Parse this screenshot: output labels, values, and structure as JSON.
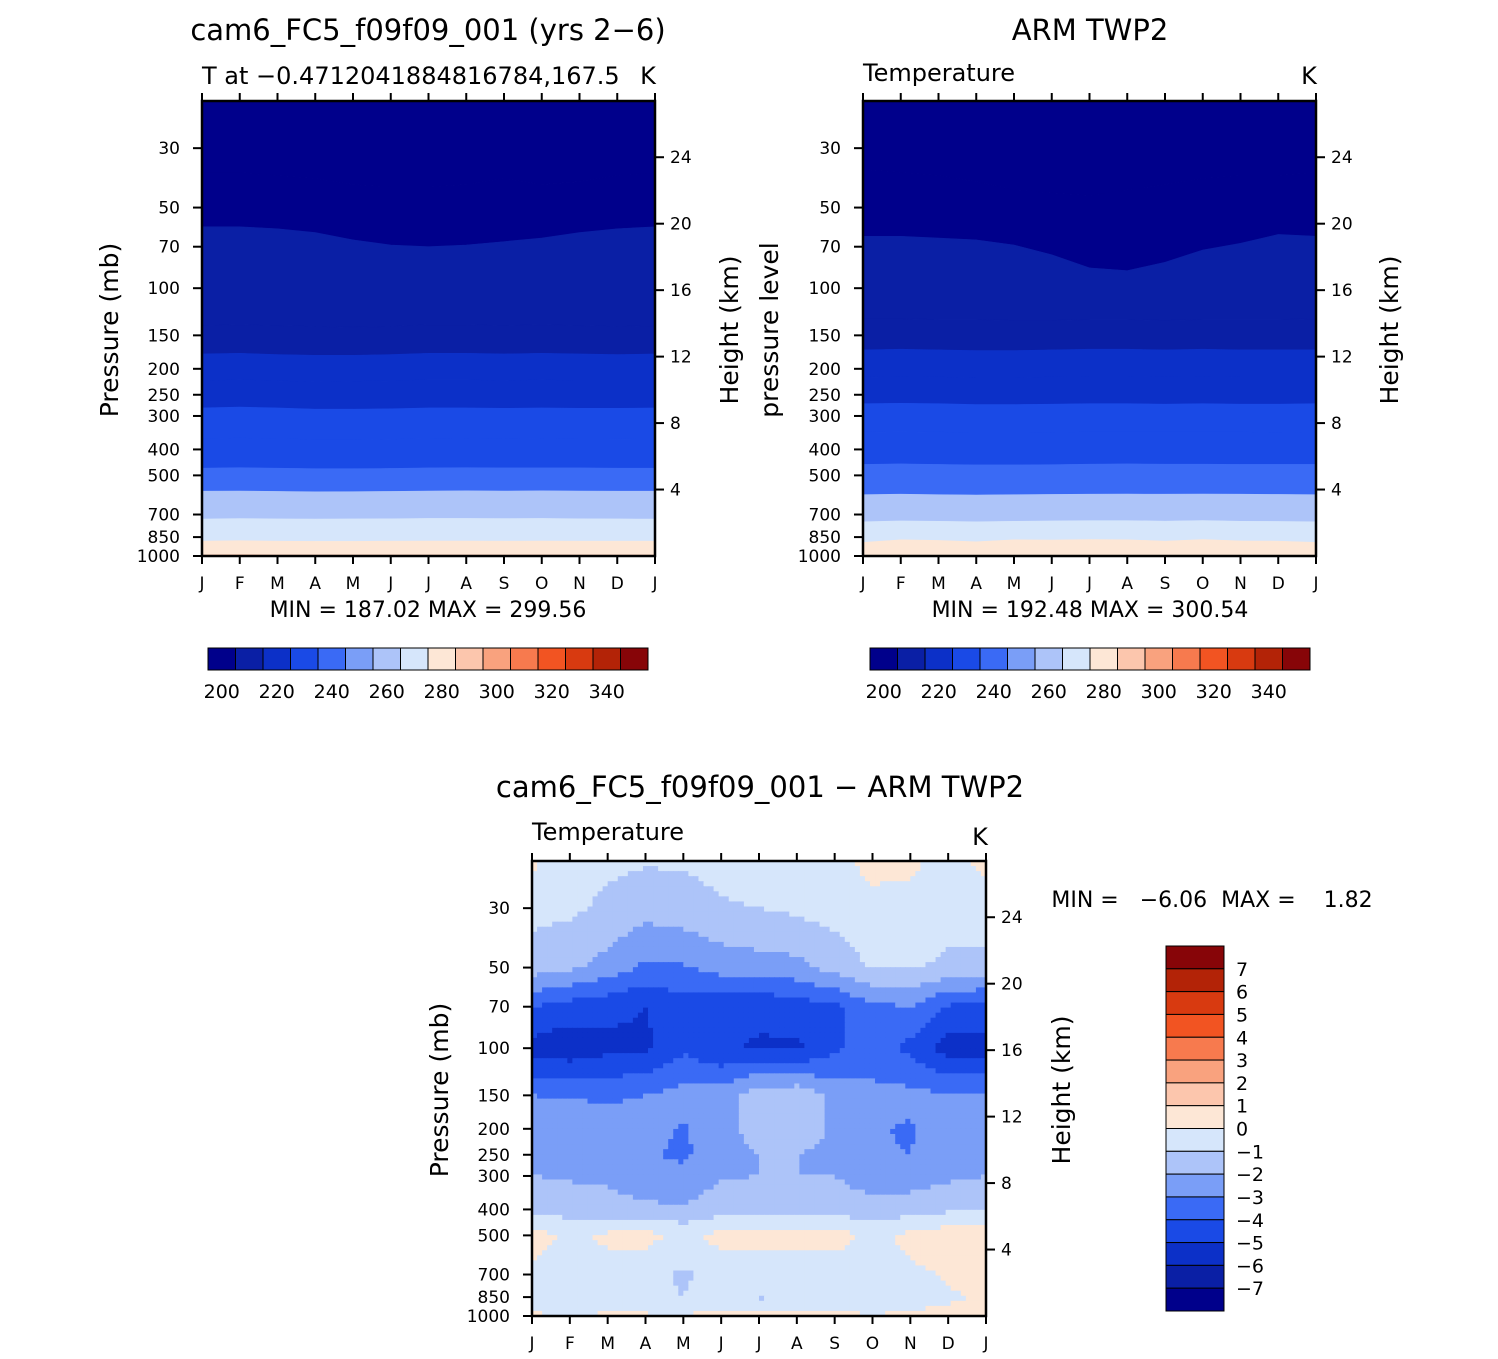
{
  "chart_data": [
    {
      "type": "heatmap",
      "title": "cam6_FC5_f09f09_001 (yrs 2−6)",
      "subtitle": "T at −0.4712041884816784,167.5",
      "units": "K",
      "xlabel": "",
      "ylabel": "Pressure (mb)",
      "ylabel_right": "Height (km)",
      "x_ticks": [
        "J",
        "F",
        "M",
        "A",
        "M",
        "J",
        "J",
        "A",
        "S",
        "O",
        "N",
        "D",
        "J"
      ],
      "y_ticks": [
        "30",
        "50",
        "70",
        "100",
        "150",
        "200",
        "250",
        "300",
        "400",
        "500",
        "700",
        "850",
        "1000"
      ],
      "y_ticks_right": [
        "24",
        "20",
        "16",
        "12",
        "8",
        "4"
      ],
      "ylim": [
        1000,
        20
      ],
      "y_scale": "log",
      "stats": "MIN = 187.02 MAX = 299.56",
      "colorbar": {
        "levels": [
          195,
          200,
          205,
          210,
          215,
          220,
          225,
          230,
          235,
          240,
          245,
          250,
          255,
          260,
          265,
          270,
          275,
          280,
          285,
          290,
          295,
          300,
          305,
          310,
          315,
          320,
          325,
          330,
          335,
          340,
          345,
          350
        ],
        "labels": [
          "200",
          "220",
          "240",
          "260",
          "280",
          "300",
          "320",
          "340"
        ],
        "colors": [
          "#00008b",
          "#0a1fa5",
          "#0c30c8",
          "#1a4ae6",
          "#3a6af5",
          "#7a9ef7",
          "#adc4f9",
          "#d6e6fb",
          "#fde7d6",
          "#fcc6ad",
          "#f9a27e",
          "#f77a4e",
          "#f25422",
          "#d83a10",
          "#b32307",
          "#870508"
        ]
      },
      "bands": [
        {
          "bottom_p": 20,
          "top_p": 20,
          "value": 196,
          "top_profile": [
            20,
            20,
            20,
            20,
            20,
            20,
            20,
            20,
            20,
            20,
            20,
            20,
            20
          ]
        },
        {
          "value": 200,
          "top_profile": [
            37,
            37,
            38,
            39,
            41,
            42,
            42,
            41,
            39,
            41,
            40,
            38,
            37
          ]
        },
        {
          "value": 205,
          "top_profile": [
            59,
            59,
            60,
            62,
            66,
            69,
            70,
            69,
            67,
            65,
            62,
            60,
            59
          ]
        },
        {
          "value": 210,
          "top_profile": [
            138,
            137,
            138,
            139,
            140,
            139,
            137,
            137,
            138,
            137,
            138,
            139,
            138
          ]
        },
        {
          "value": 215,
          "top_profile": [
            176,
            175,
            177,
            178,
            178,
            177,
            175,
            175,
            176,
            175,
            176,
            177,
            176
          ]
        },
        {
          "value": 220,
          "top_profile": [
            222,
            220,
            222,
            224,
            223,
            222,
            220,
            220,
            222,
            220,
            222,
            222,
            222
          ]
        },
        {
          "value": 225,
          "top_profile": [
            280,
            278,
            280,
            283,
            283,
            282,
            280,
            280,
            281,
            280,
            281,
            281,
            280
          ]
        },
        {
          "value": 230,
          "top_profile": [
            365,
            363,
            365,
            368,
            368,
            367,
            365,
            364,
            365,
            364,
            365,
            366,
            365
          ]
        },
        {
          "value": 240,
          "top_profile": [
            470,
            468,
            470,
            472,
            472,
            471,
            469,
            468,
            469,
            469,
            469,
            470,
            470
          ]
        },
        {
          "value": 260,
          "top_profile": [
            573,
            572,
            574,
            576,
            575,
            574,
            572,
            571,
            572,
            571,
            572,
            573,
            573
          ]
        },
        {
          "value": 272,
          "top_profile": [
            728,
            725,
            727,
            728,
            727,
            726,
            724,
            724,
            725,
            724,
            726,
            727,
            728
          ]
        },
        {
          "value": 282,
          "top_profile": [
            880,
            877,
            880,
            882,
            882,
            880,
            879,
            879,
            880,
            879,
            880,
            880,
            880
          ]
        },
        {
          "value": 292,
          "top_profile": [
            990,
            988,
            990,
            990,
            990,
            990,
            990,
            990,
            990,
            990,
            990,
            990,
            990
          ]
        }
      ]
    },
    {
      "type": "heatmap",
      "title": "ARM TWP2",
      "subtitle": "Temperature",
      "units": "K",
      "xlabel": "",
      "ylabel": "pressure level",
      "ylabel_right": "Height (km)",
      "x_ticks": [
        "J",
        "F",
        "M",
        "A",
        "M",
        "J",
        "J",
        "A",
        "S",
        "O",
        "N",
        "D",
        "J"
      ],
      "y_ticks": [
        "30",
        "50",
        "70",
        "100",
        "150",
        "200",
        "250",
        "300",
        "400",
        "500",
        "700",
        "850",
        "1000"
      ],
      "y_ticks_right": [
        "24",
        "20",
        "16",
        "12",
        "8",
        "4"
      ],
      "ylim": [
        1000,
        20
      ],
      "y_scale": "log",
      "stats": "MIN = 192.48 MAX = 300.54",
      "colorbar": {
        "levels": [
          195,
          200,
          205,
          210,
          215,
          220,
          225,
          230,
          235,
          240,
          245,
          250,
          255,
          260,
          265,
          270,
          275,
          280,
          285,
          290,
          295,
          300,
          305,
          310,
          315,
          320,
          325,
          330,
          335,
          340,
          345,
          350
        ],
        "labels": [
          "200",
          "220",
          "240",
          "260",
          "280",
          "300",
          "320",
          "340"
        ],
        "colors": [
          "#00008b",
          "#0a1fa5",
          "#0c30c8",
          "#1a4ae6",
          "#3a6af5",
          "#7a9ef7",
          "#adc4f9",
          "#d6e6fb",
          "#fde7d6",
          "#fcc6ad",
          "#f9a27e",
          "#f77a4e",
          "#f25422",
          "#d83a10",
          "#b32307",
          "#870508"
        ]
      },
      "bands": [
        {
          "bottom_p": 20,
          "top_p": 20,
          "value": 197,
          "top_profile": [
            20,
            20,
            20,
            20,
            20,
            20,
            20,
            20,
            20,
            20,
            20,
            20,
            20
          ]
        },
        {
          "value": 200,
          "top_profile": [
            36,
            37,
            38,
            40,
            43,
            44,
            45,
            43,
            41,
            39,
            38,
            38,
            37
          ]
        },
        {
          "value": 205,
          "top_profile": [
            64,
            64,
            65,
            66,
            69,
            75,
            84,
            86,
            80,
            72,
            68,
            63,
            64
          ]
        },
        {
          "value": 210,
          "top_profile": [
            130,
            130,
            131,
            131,
            132,
            132,
            131,
            131,
            132,
            131,
            131,
            131,
            130
          ]
        },
        {
          "value": 215,
          "top_profile": [
            170,
            169,
            170,
            171,
            171,
            170,
            169,
            169,
            170,
            169,
            170,
            170,
            170
          ]
        },
        {
          "value": 220,
          "top_profile": [
            215,
            214,
            215,
            216,
            216,
            215,
            214,
            214,
            215,
            214,
            215,
            215,
            215
          ]
        },
        {
          "value": 225,
          "top_profile": [
            270,
            269,
            270,
            272,
            272,
            271,
            270,
            270,
            271,
            270,
            271,
            271,
            270
          ]
        },
        {
          "value": 230,
          "top_profile": [
            345,
            344,
            345,
            347,
            347,
            346,
            345,
            345,
            345,
            345,
            345,
            346,
            345
          ]
        },
        {
          "value": 240,
          "top_profile": [
            455,
            453,
            455,
            457,
            457,
            456,
            454,
            453,
            454,
            454,
            455,
            455,
            455
          ]
        },
        {
          "value": 260,
          "top_profile": [
            590,
            588,
            590,
            592,
            590,
            589,
            588,
            587,
            588,
            587,
            588,
            589,
            590
          ]
        },
        {
          "value": 272,
          "top_profile": [
            745,
            740,
            742,
            745,
            742,
            740,
            738,
            738,
            741,
            737,
            742,
            743,
            745
          ]
        },
        {
          "value": 282,
          "top_profile": [
            890,
            870,
            875,
            885,
            870,
            872,
            868,
            870,
            880,
            868,
            878,
            880,
            890
          ]
        }
      ]
    },
    {
      "type": "heatmap",
      "title": "cam6_FC5_f09f09_001 − ARM TWP2",
      "subtitle": "Temperature",
      "units": "K",
      "xlabel": "",
      "ylabel": "Pressure (mb)",
      "ylabel_right": "Height (km)",
      "x_ticks": [
        "J",
        "F",
        "M",
        "A",
        "M",
        "J",
        "J",
        "A",
        "S",
        "O",
        "N",
        "D",
        "J"
      ],
      "y_ticks": [
        "30",
        "50",
        "70",
        "100",
        "150",
        "200",
        "250",
        "300",
        "400",
        "500",
        "700",
        "850",
        "1000"
      ],
      "y_ticks_right": [
        "24",
        "20",
        "16",
        "12",
        "8",
        "4"
      ],
      "ylim": [
        1000,
        20
      ],
      "y_scale": "log",
      "stats": "MIN =   −6.06  MAX =    1.82",
      "colorbar": {
        "labels": [
          "7",
          "6",
          "5",
          "4",
          "3",
          "2",
          "1",
          "0",
          "−1",
          "−2",
          "−3",
          "−4",
          "−5",
          "−6",
          "−7"
        ],
        "colors": [
          "#870508",
          "#b32307",
          "#d83a10",
          "#f25422",
          "#f77a4e",
          "#f9a27e",
          "#fcc6ad",
          "#fde7d6",
          "#d6e6fb",
          "#adc4f9",
          "#7a9ef7",
          "#3a6af5",
          "#1a4ae6",
          "#0c30c8",
          "#0a1fa5",
          "#00008b"
        ]
      },
      "grid_columns": [
        "J",
        "F",
        "M",
        "A",
        "M",
        "J",
        "J",
        "A",
        "S",
        "O",
        "N",
        "D",
        "J"
      ],
      "grid_rows_p": [
        20,
        30,
        50,
        70,
        100,
        150,
        200,
        250,
        300,
        400,
        500,
        700,
        850,
        1000
      ],
      "grid_values": [
        [
          0.2,
          -0.6,
          -0.8,
          -0.9,
          -0.9,
          -0.7,
          -0.6,
          -0.5,
          -0.3,
          0.3,
          0.2,
          -0.4,
          0.3
        ],
        [
          -0.7,
          -0.8,
          -1.2,
          -1.6,
          -1.4,
          -1.1,
          -1.0,
          -0.8,
          -0.6,
          -0.3,
          -0.3,
          -0.6,
          -0.5
        ],
        [
          -1.5,
          -1.8,
          -2.4,
          -3.2,
          -3.1,
          -2.6,
          -2.4,
          -2.3,
          -1.6,
          -0.9,
          -0.9,
          -1.2,
          -1.3
        ],
        [
          -4.0,
          -4.4,
          -4.7,
          -5.0,
          -4.4,
          -4.6,
          -4.8,
          -4.5,
          -4.2,
          -3.2,
          -3.0,
          -4.1,
          -4.4
        ],
        [
          -5.4,
          -5.7,
          -5.3,
          -5.2,
          -4.2,
          -4.9,
          -5.1,
          -5.2,
          -4.2,
          -3.4,
          -4.3,
          -5.5,
          -5.4
        ],
        [
          -3.0,
          -3.1,
          -3.2,
          -3.0,
          -2.6,
          -2.5,
          -1.3,
          -1.2,
          -2.4,
          -2.8,
          -2.7,
          -2.9,
          -3.0
        ],
        [
          -2.2,
          -2.3,
          -2.3,
          -2.6,
          -3.1,
          -2.3,
          -1.6,
          -1.4,
          -2.2,
          -2.9,
          -3.1,
          -2.4,
          -2.2
        ],
        [
          -2.1,
          -2.2,
          -2.4,
          -2.9,
          -3.2,
          -2.4,
          -2.0,
          -2.0,
          -2.2,
          -2.9,
          -3.0,
          -2.4,
          -2.1
        ],
        [
          -2.0,
          -2.1,
          -2.2,
          -2.6,
          -2.7,
          -2.1,
          -2.0,
          -2.0,
          -2.0,
          -2.5,
          -2.5,
          -2.2,
          -2.0
        ],
        [
          -1.2,
          -1.5,
          -1.6,
          -1.8,
          -1.9,
          -1.4,
          -1.2,
          -1.3,
          -1.5,
          -1.6,
          -1.5,
          -1.2,
          -1.0
        ],
        [
          0.4,
          -0.2,
          0.2,
          0.3,
          -0.2,
          0.3,
          0.4,
          0.3,
          0.5,
          -0.3,
          0.3,
          0.6,
          0.9
        ],
        [
          -0.2,
          -0.6,
          -0.4,
          -0.6,
          -1.2,
          -0.5,
          -0.5,
          -0.6,
          -0.7,
          -0.5,
          -0.2,
          0.1,
          0.2
        ],
        [
          -0.3,
          -0.9,
          -0.4,
          -0.6,
          -1.0,
          -0.5,
          -1.1,
          -1.0,
          -0.7,
          -1.0,
          -0.4,
          -0.1,
          0.1
        ],
        [
          0.1,
          0.0,
          0.1,
          0.1,
          0.1,
          0.2,
          0.2,
          0.2,
          0.2,
          0.1,
          0.2,
          0.2,
          0.3
        ]
      ],
      "levels": [
        -8,
        -7,
        -6,
        -5,
        -4,
        -3,
        -2,
        -1,
        0,
        1,
        2,
        3,
        4,
        5,
        6,
        7,
        8
      ]
    }
  ]
}
